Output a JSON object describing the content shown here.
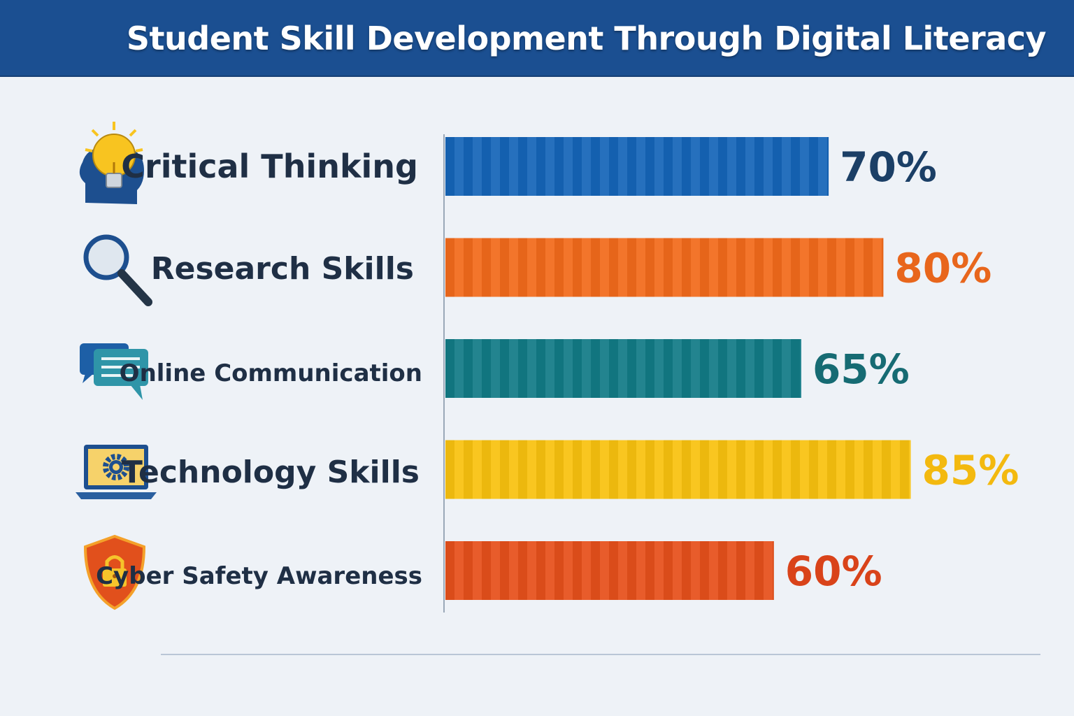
{
  "title": "Student Skill Development Through Digital Literacy",
  "chart_data": {
    "type": "bar",
    "orientation": "horizontal",
    "categories": [
      "Critical Thinking",
      "Research Skills",
      "Online Communication",
      "Technology Skills",
      "Cyber Safety Awareness"
    ],
    "values": [
      70,
      80,
      65,
      85,
      60
    ],
    "value_labels": [
      "70%",
      "80%",
      "65%",
      "85%",
      "60%"
    ],
    "icons": [
      "head-lightbulb-icon",
      "magnifying-glass-icon",
      "chat-bubbles-icon",
      "laptop-gear-icon",
      "shield-lock-icon"
    ],
    "colors": [
      "#1565b8",
      "#f26a1b",
      "#127b86",
      "#f9c20f",
      "#e6501b"
    ],
    "label_colors": [
      "#1b3f66",
      "#e8661c",
      "#166b73",
      "#f3b90f",
      "#d9431a"
    ],
    "grid": false,
    "xlim": [
      0,
      100
    ]
  }
}
